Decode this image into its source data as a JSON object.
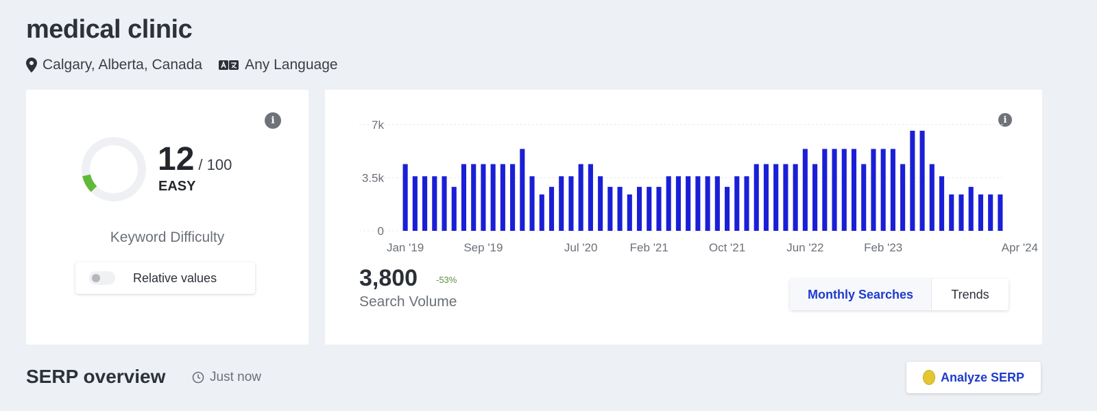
{
  "header": {
    "title": "medical clinic",
    "location": "Calgary, Alberta, Canada",
    "language": "Any Language"
  },
  "keyword_difficulty": {
    "score": "12",
    "max": "/ 100",
    "score_fraction": 0.12,
    "level": "EASY",
    "title": "Keyword Difficulty",
    "toggle_label": "Relative values",
    "toggle_on": false,
    "info_icon": "info-icon"
  },
  "search_volume": {
    "value": "3,800",
    "change": "-53%",
    "label": "Search Volume",
    "tabs": [
      {
        "label": "Monthly Searches",
        "active": true
      },
      {
        "label": "Trends",
        "active": false
      }
    ]
  },
  "serp": {
    "title": "SERP overview",
    "time": "Just now",
    "analyze_label": "Analyze SERP"
  },
  "colors": {
    "bar": "#1a1fd6",
    "accent": "#1e3bcc",
    "donut_fill": "#5fba37",
    "donut_track": "#eef0f4"
  },
  "chart_data": {
    "type": "bar",
    "x_ticks": [
      "Jan '19",
      "Sep '19",
      "Jul '20",
      "Feb '21",
      "Oct '21",
      "Jun '22",
      "Feb '23",
      "Apr '24"
    ],
    "y_ticks": [
      "0",
      "3.5k",
      "7k"
    ],
    "ylim": [
      0,
      7000
    ],
    "x_start": "2019-01",
    "values": [
      4400,
      3600,
      3600,
      3600,
      3600,
      2900,
      4400,
      4400,
      4400,
      4400,
      4400,
      4400,
      5400,
      3600,
      2400,
      2900,
      3600,
      3600,
      4400,
      4400,
      3600,
      2900,
      2900,
      2400,
      2900,
      2900,
      2900,
      3600,
      3600,
      3600,
      3600,
      3600,
      3600,
      2900,
      3600,
      3600,
      4400,
      4400,
      4400,
      4400,
      4400,
      5400,
      4400,
      5400,
      5400,
      5400,
      5400,
      4400,
      5400,
      5400,
      5400,
      4400,
      6600,
      6600,
      4400,
      3600,
      2400,
      2400,
      2900,
      2400,
      2400,
      2400
    ]
  }
}
